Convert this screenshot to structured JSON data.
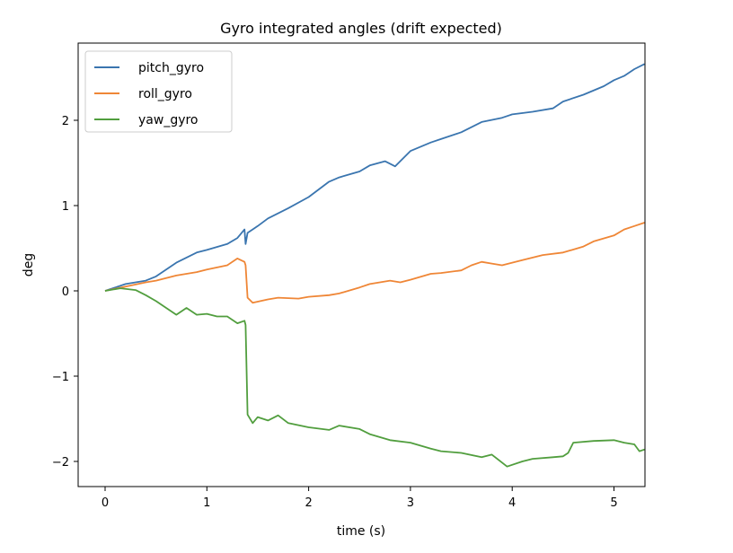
{
  "chart_data": {
    "type": "line",
    "title": "Gyro integrated angles (drift expected)",
    "xlabel": "time (s)",
    "ylabel": "deg",
    "xlim": [
      -0.27,
      5.3
    ],
    "ylim": [
      -2.32,
      2.9
    ],
    "xticks": [
      0,
      1,
      2,
      3,
      4,
      5
    ],
    "yticks": [
      -2,
      -1,
      0,
      1,
      2
    ],
    "ytick_labels": [
      "−2",
      "−1",
      "0",
      "1",
      "2"
    ],
    "xtick_labels": [
      "0",
      "1",
      "2",
      "3",
      "4",
      "5"
    ],
    "legend_position": "top-left",
    "grid": false,
    "series": [
      {
        "name": "pitch_gyro",
        "color": "#3a75af",
        "x": [
          0,
          0.2,
          0.4,
          0.5,
          0.7,
          0.9,
          1.0,
          1.2,
          1.3,
          1.37,
          1.38,
          1.4,
          1.5,
          1.6,
          1.8,
          2.0,
          2.2,
          2.3,
          2.5,
          2.6,
          2.75,
          2.85,
          3.0,
          3.2,
          3.3,
          3.5,
          3.7,
          3.9,
          4.0,
          4.2,
          4.4,
          4.5,
          4.7,
          4.9,
          5.0,
          5.1,
          5.2,
          5.3
        ],
        "y": [
          0,
          0.08,
          0.12,
          0.17,
          0.33,
          0.45,
          0.48,
          0.55,
          0.62,
          0.72,
          0.55,
          0.68,
          0.76,
          0.85,
          0.97,
          1.1,
          1.28,
          1.33,
          1.4,
          1.47,
          1.52,
          1.46,
          1.64,
          1.74,
          1.78,
          1.86,
          1.98,
          2.03,
          2.07,
          2.1,
          2.14,
          2.22,
          2.3,
          2.4,
          2.47,
          2.52,
          2.6,
          2.66
        ]
      },
      {
        "name": "roll_gyro",
        "color": "#ef8636",
        "x": [
          0,
          0.2,
          0.4,
          0.5,
          0.7,
          0.8,
          0.9,
          1.0,
          1.2,
          1.3,
          1.37,
          1.38,
          1.4,
          1.45,
          1.6,
          1.7,
          1.9,
          2.0,
          2.2,
          2.3,
          2.5,
          2.6,
          2.8,
          2.9,
          3.0,
          3.2,
          3.3,
          3.5,
          3.6,
          3.7,
          3.8,
          3.9,
          4.0,
          4.1,
          4.3,
          4.5,
          4.7,
          4.8,
          5.0,
          5.1,
          5.2,
          5.3
        ],
        "y": [
          0,
          0.05,
          0.1,
          0.12,
          0.18,
          0.2,
          0.22,
          0.25,
          0.3,
          0.38,
          0.34,
          0.3,
          -0.08,
          -0.14,
          -0.1,
          -0.08,
          -0.09,
          -0.07,
          -0.05,
          -0.03,
          0.04,
          0.08,
          0.12,
          0.1,
          0.13,
          0.2,
          0.21,
          0.24,
          0.3,
          0.34,
          0.32,
          0.3,
          0.33,
          0.36,
          0.42,
          0.45,
          0.52,
          0.58,
          0.65,
          0.72,
          0.76,
          0.8
        ]
      },
      {
        "name": "yaw_gyro",
        "color": "#519e3e",
        "x": [
          0,
          0.15,
          0.3,
          0.4,
          0.5,
          0.6,
          0.7,
          0.8,
          0.9,
          1.0,
          1.1,
          1.2,
          1.3,
          1.37,
          1.38,
          1.4,
          1.45,
          1.5,
          1.6,
          1.7,
          1.8,
          2.0,
          2.2,
          2.3,
          2.5,
          2.6,
          2.8,
          3.0,
          3.2,
          3.3,
          3.5,
          3.7,
          3.8,
          3.95,
          4.1,
          4.2,
          4.4,
          4.5,
          4.55,
          4.6,
          4.8,
          5.0,
          5.1,
          5.2,
          5.25,
          5.3
        ],
        "y": [
          0,
          0.03,
          0.01,
          -0.05,
          -0.12,
          -0.2,
          -0.28,
          -0.2,
          -0.28,
          -0.27,
          -0.3,
          -0.3,
          -0.38,
          -0.35,
          -0.4,
          -1.45,
          -1.55,
          -1.48,
          -1.52,
          -1.46,
          -1.55,
          -1.6,
          -1.63,
          -1.58,
          -1.62,
          -1.68,
          -1.75,
          -1.78,
          -1.85,
          -1.88,
          -1.9,
          -1.95,
          -1.92,
          -2.06,
          -2.0,
          -1.97,
          -1.95,
          -1.94,
          -1.9,
          -1.78,
          -1.76,
          -1.75,
          -1.78,
          -1.8,
          -1.88,
          -1.86
        ]
      }
    ]
  }
}
